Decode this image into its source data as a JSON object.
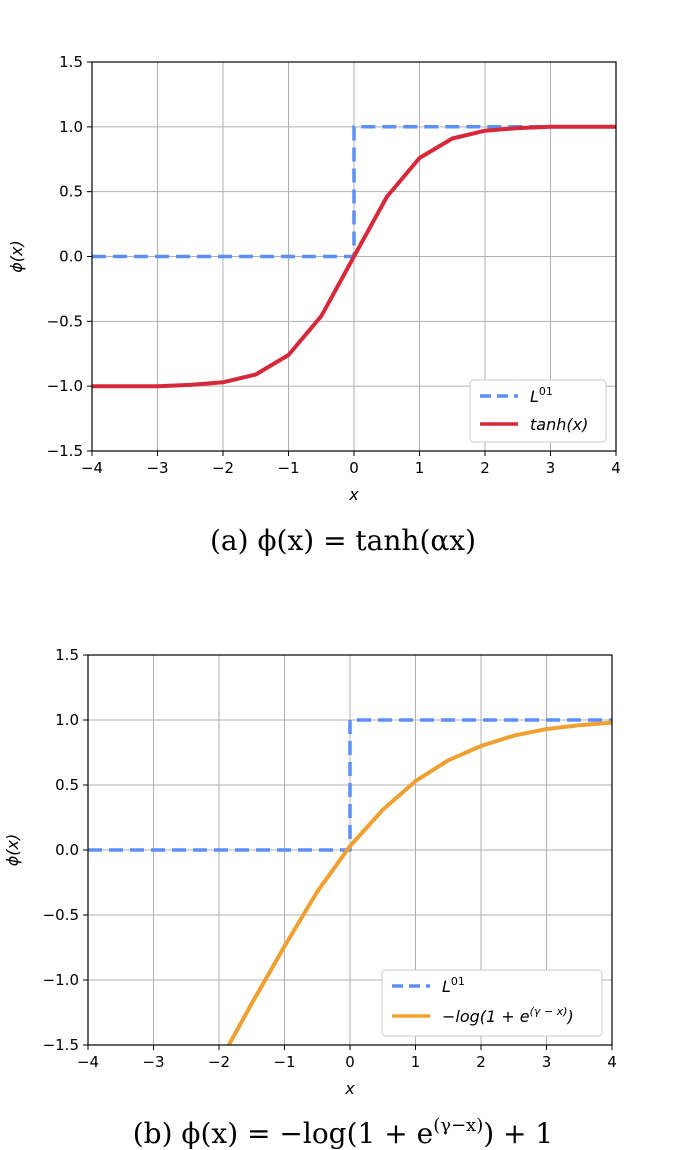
{
  "chart_data": [
    {
      "type": "line",
      "xlabel": "x",
      "ylabel": "ϕ(x)",
      "xlim": [
        -4,
        4
      ],
      "ylim": [
        -1.5,
        1.5
      ],
      "xticks": [
        "−4",
        "−3",
        "−2",
        "−1",
        "0",
        "1",
        "2",
        "3",
        "4"
      ],
      "yticks": [
        "1.5",
        "1.0",
        "0.5",
        "0.0",
        "−0.5",
        "−1.0",
        "−1.5"
      ],
      "grid": true,
      "legend_position": "bottom-right",
      "caption": "(a) ϕ(x) = tanh(αx)",
      "series": [
        {
          "name": "L01",
          "style": "dashed",
          "color": "#5b8ff9",
          "x": [
            -4,
            0,
            0,
            4
          ],
          "y": [
            0,
            0,
            1,
            1
          ]
        },
        {
          "name": "tanh(x)",
          "style": "solid",
          "color": "#d62839",
          "x": [
            -4,
            -3,
            -2.5,
            -2,
            -1.5,
            -1,
            -0.5,
            0,
            0.5,
            1,
            1.5,
            2,
            2.5,
            3,
            4
          ],
          "y": [
            -1.0,
            -1.0,
            -0.99,
            -0.97,
            -0.91,
            -0.76,
            -0.46,
            0.0,
            0.46,
            0.76,
            0.91,
            0.97,
            0.99,
            1.0,
            1.0
          ]
        }
      ]
    },
    {
      "type": "line",
      "xlabel": "x",
      "ylabel": "ϕ(x)",
      "xlim": [
        -4,
        4
      ],
      "ylim": [
        -1.5,
        1.5
      ],
      "xticks": [
        "−4",
        "−3",
        "−2",
        "−1",
        "0",
        "1",
        "2",
        "3",
        "4"
      ],
      "yticks": [
        "1.5",
        "1.0",
        "0.5",
        "0.0",
        "−0.5",
        "−1.0",
        "−1.5"
      ],
      "grid": true,
      "legend_position": "bottom-right",
      "caption": "(b) ϕ(x) = −log(1 + e^(γ−x)) + 1",
      "series": [
        {
          "name": "L01",
          "style": "dashed",
          "color": "#5b8ff9",
          "x": [
            -4,
            0,
            0,
            4
          ],
          "y": [
            0,
            0,
            1,
            1
          ]
        },
        {
          "name": "−log(1 + e^(γ−x))",
          "style": "solid",
          "color": "#f0a030",
          "x": [
            -1.85,
            -1.5,
            -1,
            -0.5,
            0,
            0.5,
            1,
            1.5,
            2,
            2.5,
            3,
            3.5,
            4
          ],
          "y": [
            -1.5,
            -1.18,
            -0.74,
            -0.32,
            0.03,
            0.31,
            0.53,
            0.69,
            0.8,
            0.88,
            0.93,
            0.96,
            0.98
          ]
        }
      ]
    }
  ]
}
